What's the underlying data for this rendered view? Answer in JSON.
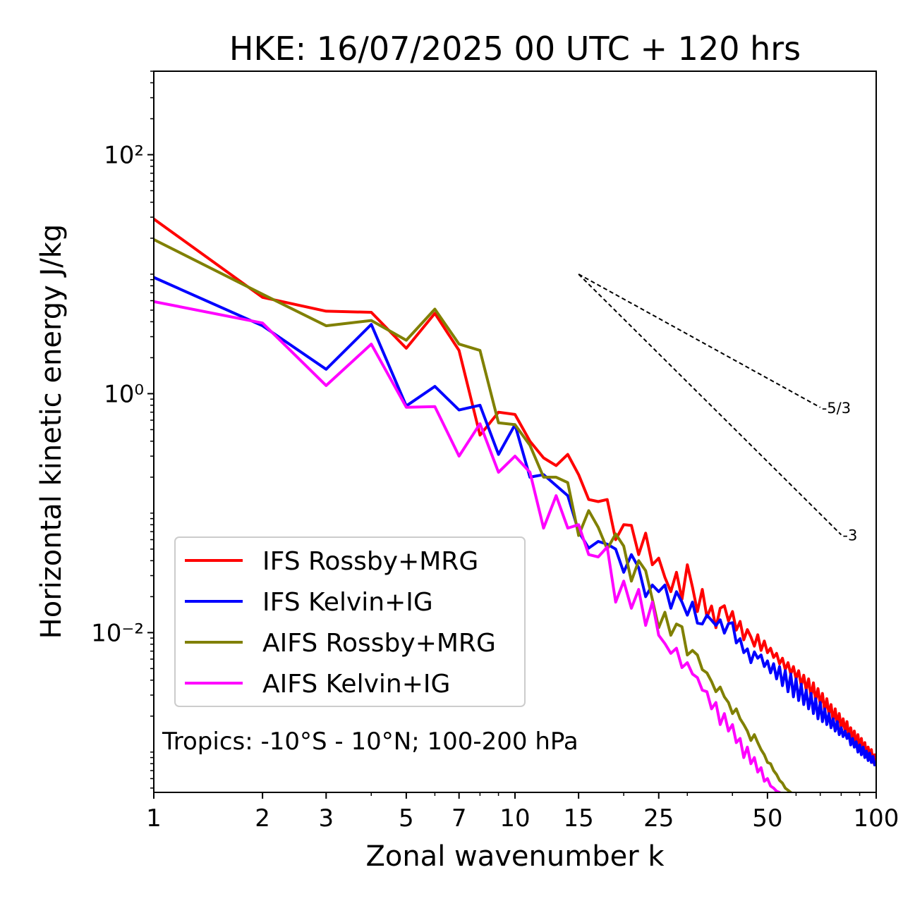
{
  "chart_data": {
    "type": "line",
    "title": "HKE: 16/07/2025 00 UTC + 120 hrs",
    "xlabel": "Zonal wavenumber k",
    "ylabel": "Horizontal kinetic energy J/kg",
    "xscale": "log",
    "yscale": "log",
    "xlim": [
      1,
      100
    ],
    "ylim": [
      0.00046,
      500
    ],
    "xticks": [
      1,
      2,
      3,
      5,
      7,
      10,
      15,
      25,
      50,
      100
    ],
    "xtick_labels": [
      "1",
      "2",
      "3",
      "5",
      "7",
      "10",
      "15",
      "25",
      "50",
      "100"
    ],
    "yticks": [
      0.01,
      1,
      100
    ],
    "ytick_labels": [
      "10⁻²",
      "10⁰",
      "10²"
    ],
    "grid": false,
    "legend_position": "lower-left",
    "annotation": "Tropics: -10°S - 10°N; 100-200 hPa",
    "reference_slopes": [
      {
        "label": "-5/3",
        "slope": -1.6667,
        "x_start": 15,
        "x_end": 70,
        "y_start": 10.0
      },
      {
        "label": "-3",
        "slope": -3,
        "x_start": 15,
        "x_end": 80,
        "y_start": 10.0
      }
    ],
    "series": [
      {
        "name": "IFS Rossby+MRG",
        "color": "#ff0000",
        "x": [
          1,
          2,
          3,
          4,
          5,
          6,
          7,
          8,
          9,
          10,
          11,
          12,
          13,
          14,
          15,
          16,
          17,
          18,
          19,
          20,
          21,
          22,
          23,
          24,
          25,
          26,
          27,
          28,
          29,
          30,
          31,
          32,
          33,
          34,
          35,
          36,
          37,
          38,
          39,
          40,
          41,
          42,
          43,
          44,
          45,
          46,
          47,
          48,
          49,
          50,
          51,
          52,
          53,
          54,
          55,
          56,
          57,
          58,
          59,
          60,
          61,
          62,
          63,
          64,
          65,
          66,
          67,
          68,
          69,
          70,
          71,
          72,
          73,
          74,
          75,
          76,
          77,
          78,
          79,
          80,
          81,
          82,
          83,
          84,
          85,
          86,
          87,
          88,
          89,
          90,
          91,
          92,
          93,
          94,
          95,
          96,
          97,
          98,
          99,
          100
        ],
        "values": [
          29,
          6.4,
          4.9,
          4.8,
          2.4,
          4.7,
          2.3,
          0.45,
          0.7,
          0.67,
          0.4,
          0.29,
          0.25,
          0.31,
          0.21,
          0.13,
          0.125,
          0.13,
          0.06,
          0.08,
          0.079,
          0.045,
          0.068,
          0.037,
          0.042,
          0.029,
          0.022,
          0.032,
          0.019,
          0.037,
          0.024,
          0.015,
          0.023,
          0.0135,
          0.0167,
          0.011,
          0.016,
          0.0168,
          0.0125,
          0.015,
          0.0105,
          0.0124,
          0.0087,
          0.0106,
          0.0092,
          0.0077,
          0.0096,
          0.0071,
          0.0085,
          0.0068,
          0.0074,
          0.0062,
          0.0067,
          0.0055,
          0.0061,
          0.0049,
          0.0056,
          0.0045,
          0.0052,
          0.0041,
          0.0048,
          0.0036,
          0.0044,
          0.0033,
          0.0041,
          0.0029,
          0.0038,
          0.0027,
          0.0034,
          0.0025,
          0.0031,
          0.0022,
          0.0028,
          0.0021,
          0.0025,
          0.0018,
          0.0023,
          0.0017,
          0.0021,
          0.0016,
          0.0019,
          0.0015,
          0.0018,
          0.00135,
          0.0016,
          0.00125,
          0.0015,
          0.00115,
          0.0014,
          0.00105,
          0.0013,
          0.001,
          0.0012,
          0.00093,
          0.0011,
          0.00088,
          0.00105,
          0.00082,
          0.00095,
          0.00078
        ]
      },
      {
        "name": "IFS Kelvin+IG",
        "color": "#0000ff",
        "x": [
          1,
          2,
          3,
          4,
          5,
          6,
          7,
          8,
          9,
          10,
          11,
          12,
          13,
          14,
          15,
          16,
          17,
          18,
          19,
          20,
          21,
          22,
          23,
          24,
          25,
          26,
          27,
          28,
          29,
          30,
          31,
          32,
          33,
          34,
          35,
          36,
          37,
          38,
          39,
          40,
          41,
          42,
          43,
          44,
          45,
          46,
          47,
          48,
          49,
          50,
          51,
          52,
          53,
          54,
          55,
          56,
          57,
          58,
          59,
          60,
          61,
          62,
          63,
          64,
          65,
          66,
          67,
          68,
          69,
          70,
          71,
          72,
          73,
          74,
          75,
          76,
          77,
          78,
          79,
          80,
          81,
          82,
          83,
          84,
          85,
          86,
          87,
          88,
          89,
          90,
          91,
          92,
          93,
          94,
          95,
          96,
          97,
          98,
          99,
          100
        ],
        "values": [
          9.4,
          3.7,
          1.6,
          3.8,
          0.79,
          1.15,
          0.73,
          0.8,
          0.31,
          0.55,
          0.2,
          0.21,
          0.17,
          0.14,
          0.07,
          0.051,
          0.058,
          0.055,
          0.05,
          0.032,
          0.045,
          0.035,
          0.02,
          0.025,
          0.022,
          0.025,
          0.016,
          0.022,
          0.018,
          0.014,
          0.018,
          0.012,
          0.0118,
          0.014,
          0.0127,
          0.0115,
          0.0128,
          0.0099,
          0.0119,
          0.0121,
          0.0082,
          0.0089,
          0.0068,
          0.0073,
          0.0056,
          0.0069,
          0.0061,
          0.0065,
          0.0052,
          0.0058,
          0.0046,
          0.0055,
          0.0041,
          0.0052,
          0.0036,
          0.0048,
          0.0032,
          0.0045,
          0.0029,
          0.0041,
          0.0027,
          0.0037,
          0.0025,
          0.0033,
          0.0023,
          0.0031,
          0.0021,
          0.0028,
          0.0019,
          0.0026,
          0.0018,
          0.0023,
          0.0017,
          0.0021,
          0.0016,
          0.0019,
          0.0015,
          0.0018,
          0.0014,
          0.0016,
          0.00135,
          0.0015,
          0.0013,
          0.00142,
          0.00115,
          0.0013,
          0.0011,
          0.00122,
          0.001,
          0.00115,
          0.00095,
          0.0011,
          0.0009,
          0.00102,
          0.00085,
          0.00098,
          0.00082,
          0.00092,
          0.00078,
          0.00082
        ]
      },
      {
        "name": "AIFS Rossby+MRG",
        "color": "#808000",
        "x": [
          1,
          2,
          3,
          4,
          5,
          6,
          7,
          8,
          9,
          10,
          11,
          12,
          13,
          14,
          15,
          16,
          17,
          18,
          19,
          20,
          21,
          22,
          23,
          24,
          25,
          26,
          27,
          28,
          29,
          30,
          31,
          32,
          33,
          34,
          35,
          36,
          37,
          38,
          39,
          40,
          41,
          42,
          43,
          44,
          45,
          46,
          47,
          48,
          49,
          50,
          51,
          52,
          53,
          54,
          55,
          56,
          57,
          58,
          59
        ],
        "values": [
          19.5,
          6.8,
          3.7,
          4.1,
          2.8,
          5.1,
          2.6,
          2.3,
          0.57,
          0.55,
          0.37,
          0.2,
          0.2,
          0.18,
          0.065,
          0.105,
          0.076,
          0.05,
          0.067,
          0.053,
          0.027,
          0.04,
          0.033,
          0.019,
          0.011,
          0.0148,
          0.0095,
          0.0118,
          0.0112,
          0.0065,
          0.0071,
          0.0065,
          0.0049,
          0.0046,
          0.0039,
          0.0032,
          0.0035,
          0.0029,
          0.0026,
          0.0021,
          0.0023,
          0.0019,
          0.0017,
          0.0015,
          0.00125,
          0.0014,
          0.0012,
          0.00105,
          0.00095,
          0.00082,
          0.0008,
          0.0007,
          0.00065,
          0.00058,
          0.00055,
          0.0005,
          0.00048,
          0.00046,
          0.00044
        ]
      },
      {
        "name": "AIFS Kelvin+IG",
        "color": "#ff00ff",
        "x": [
          1,
          2,
          3,
          4,
          5,
          6,
          7,
          8,
          9,
          10,
          11,
          12,
          13,
          14,
          15,
          16,
          17,
          18,
          19,
          20,
          21,
          22,
          23,
          24,
          25,
          26,
          27,
          28,
          29,
          30,
          31,
          32,
          33,
          34,
          35,
          36,
          37,
          38,
          39,
          40,
          41,
          42,
          43,
          44,
          45,
          46,
          47,
          48,
          49,
          50,
          51,
          52,
          53,
          54,
          55,
          56,
          57,
          58,
          59
        ],
        "values": [
          5.9,
          3.9,
          1.17,
          2.6,
          0.77,
          0.78,
          0.3,
          0.56,
          0.22,
          0.3,
          0.22,
          0.075,
          0.14,
          0.075,
          0.08,
          0.045,
          0.043,
          0.052,
          0.018,
          0.027,
          0.016,
          0.023,
          0.0115,
          0.018,
          0.0095,
          0.0081,
          0.0067,
          0.0074,
          0.0051,
          0.0056,
          0.0045,
          0.0042,
          0.0033,
          0.0032,
          0.0023,
          0.0026,
          0.0017,
          0.0021,
          0.0015,
          0.0017,
          0.0012,
          0.0013,
          0.0009,
          0.0011,
          0.0008,
          0.0009,
          0.00068,
          0.00074,
          0.00057,
          0.0006,
          0.00052,
          0.0005,
          0.00047,
          0.00046,
          0.00044,
          0.00043,
          0.00042,
          0.00041,
          0.0004
        ]
      }
    ]
  }
}
